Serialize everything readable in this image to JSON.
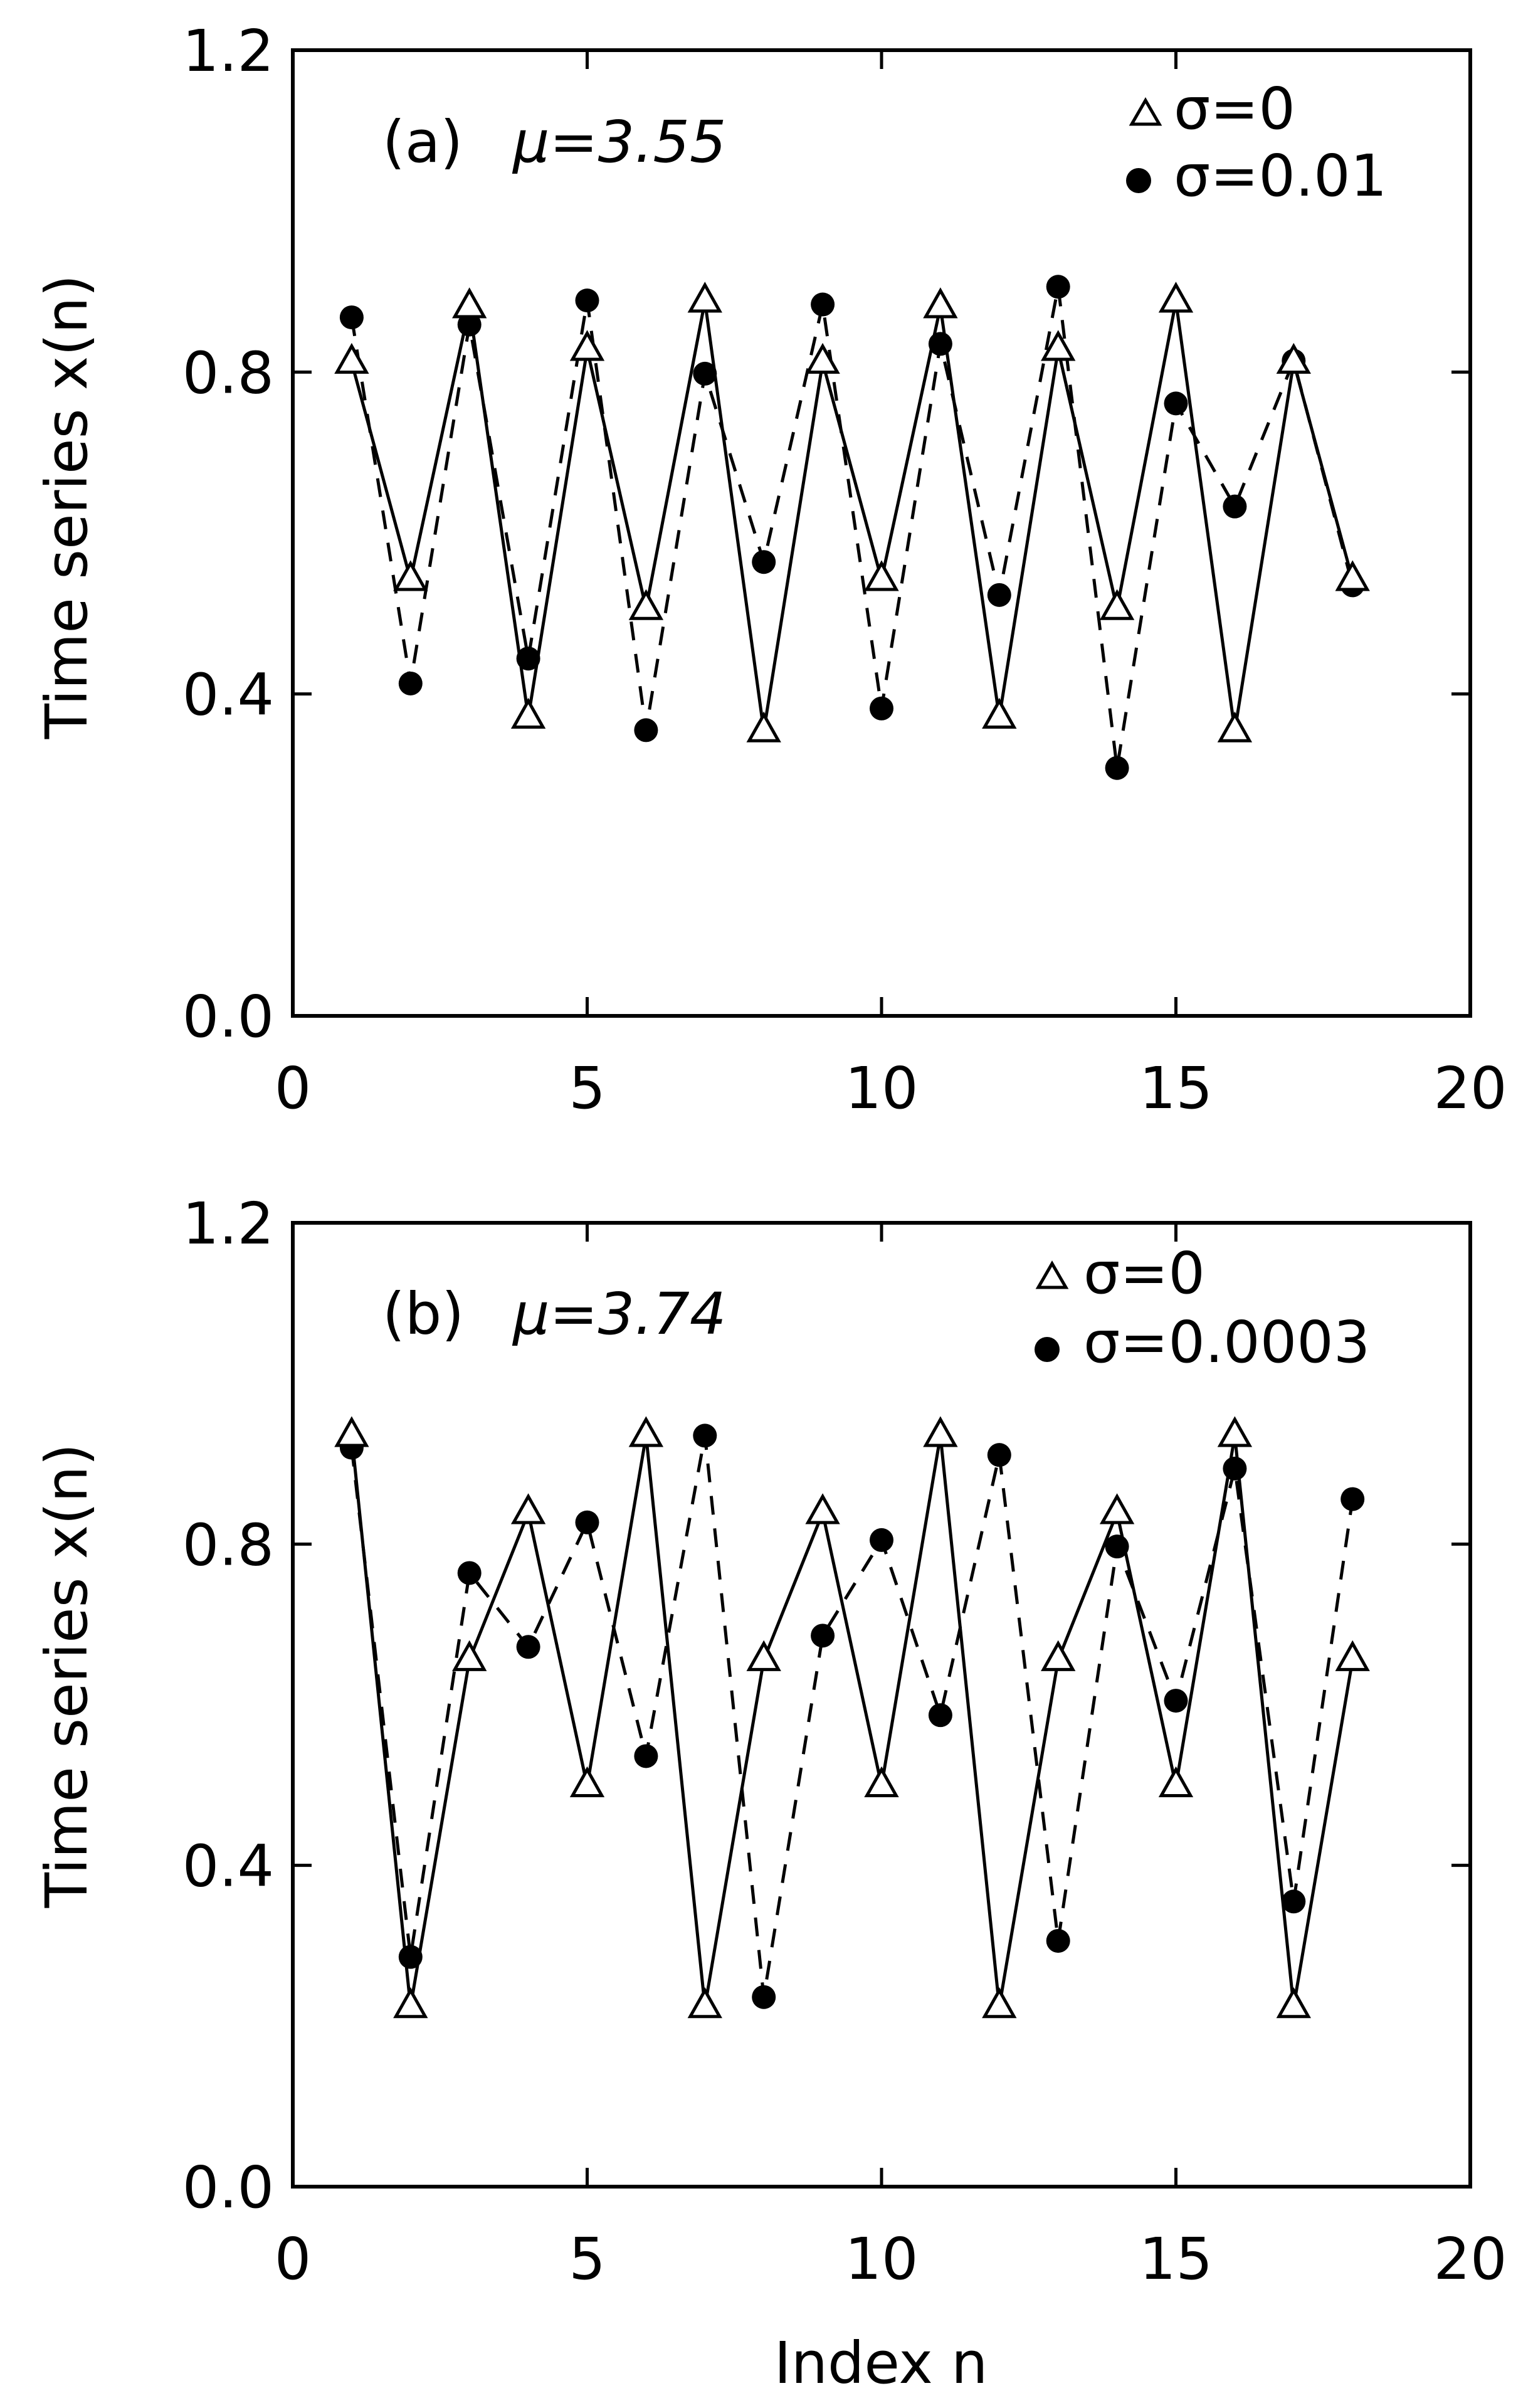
{
  "figure": {
    "xlabel": "Index n"
  },
  "chart_data": [
    {
      "type": "line",
      "panel_label": "(a)",
      "parameter": "μ=3.55",
      "xlabel": "",
      "ylabel": "Time series x(n)",
      "xlim": [
        0,
        20
      ],
      "ylim": [
        0.0,
        1.2
      ],
      "xticks": [
        "0",
        "5",
        "10",
        "15",
        "20"
      ],
      "yticks": [
        "0.0",
        "0.4",
        "0.8",
        "1.2"
      ],
      "legend_position": "top-right",
      "series": [
        {
          "name": "σ=0",
          "marker": "triangle",
          "line": "solid",
          "x": [
            1,
            2,
            3,
            4,
            5,
            6,
            7,
            8,
            9,
            10,
            11,
            12,
            13,
            14,
            15,
            16,
            17,
            18
          ],
          "values": [
            0.812,
            0.542,
            0.881,
            0.371,
            0.828,
            0.506,
            0.888,
            0.354,
            0.812,
            0.542,
            0.881,
            0.371,
            0.828,
            0.506,
            0.888,
            0.354,
            0.812,
            0.542
          ]
        },
        {
          "name": "σ=0.01",
          "marker": "filled-circle",
          "line": "dashed",
          "x": [
            1,
            2,
            3,
            4,
            5,
            6,
            7,
            8,
            9,
            10,
            11,
            12,
            13,
            14,
            15,
            16,
            17,
            18
          ],
          "values": [
            0.868,
            0.413,
            0.859,
            0.444,
            0.889,
            0.355,
            0.798,
            0.564,
            0.884,
            0.382,
            0.835,
            0.523,
            0.906,
            0.308,
            0.761,
            0.633,
            0.814,
            0.535
          ]
        }
      ]
    },
    {
      "type": "line",
      "panel_label": "(b)",
      "parameter": "μ=3.74",
      "xlabel": "Index n",
      "ylabel": "Time series x(n)",
      "xlim": [
        0,
        20
      ],
      "ylim": [
        0.0,
        1.2
      ],
      "xticks": [
        "0",
        "5",
        "10",
        "15",
        "20"
      ],
      "yticks": [
        "0.0",
        "0.4",
        "0.8",
        "1.2"
      ],
      "legend_position": "top-right",
      "series": [
        {
          "name": "σ=0",
          "marker": "triangle",
          "line": "solid",
          "x": [
            1,
            2,
            3,
            4,
            5,
            6,
            7,
            8,
            9,
            10,
            11,
            12,
            13,
            14,
            15,
            16,
            17,
            18
          ],
          "values": [
            0.935,
            0.224,
            0.656,
            0.839,
            0.499,
            0.935,
            0.224,
            0.656,
            0.839,
            0.499,
            0.935,
            0.224,
            0.656,
            0.839,
            0.499,
            0.935,
            0.224,
            0.656
          ]
        },
        {
          "name": "σ=0.0003",
          "marker": "filled-circle",
          "line": "dashed",
          "x": [
            1,
            2,
            3,
            4,
            5,
            6,
            7,
            8,
            9,
            10,
            11,
            12,
            13,
            14,
            15,
            16,
            17,
            18
          ],
          "values": [
            0.92,
            0.286,
            0.764,
            0.672,
            0.827,
            0.536,
            0.935,
            0.236,
            0.686,
            0.805,
            0.587,
            0.911,
            0.306,
            0.797,
            0.605,
            0.894,
            0.355,
            0.856
          ]
        }
      ]
    }
  ]
}
